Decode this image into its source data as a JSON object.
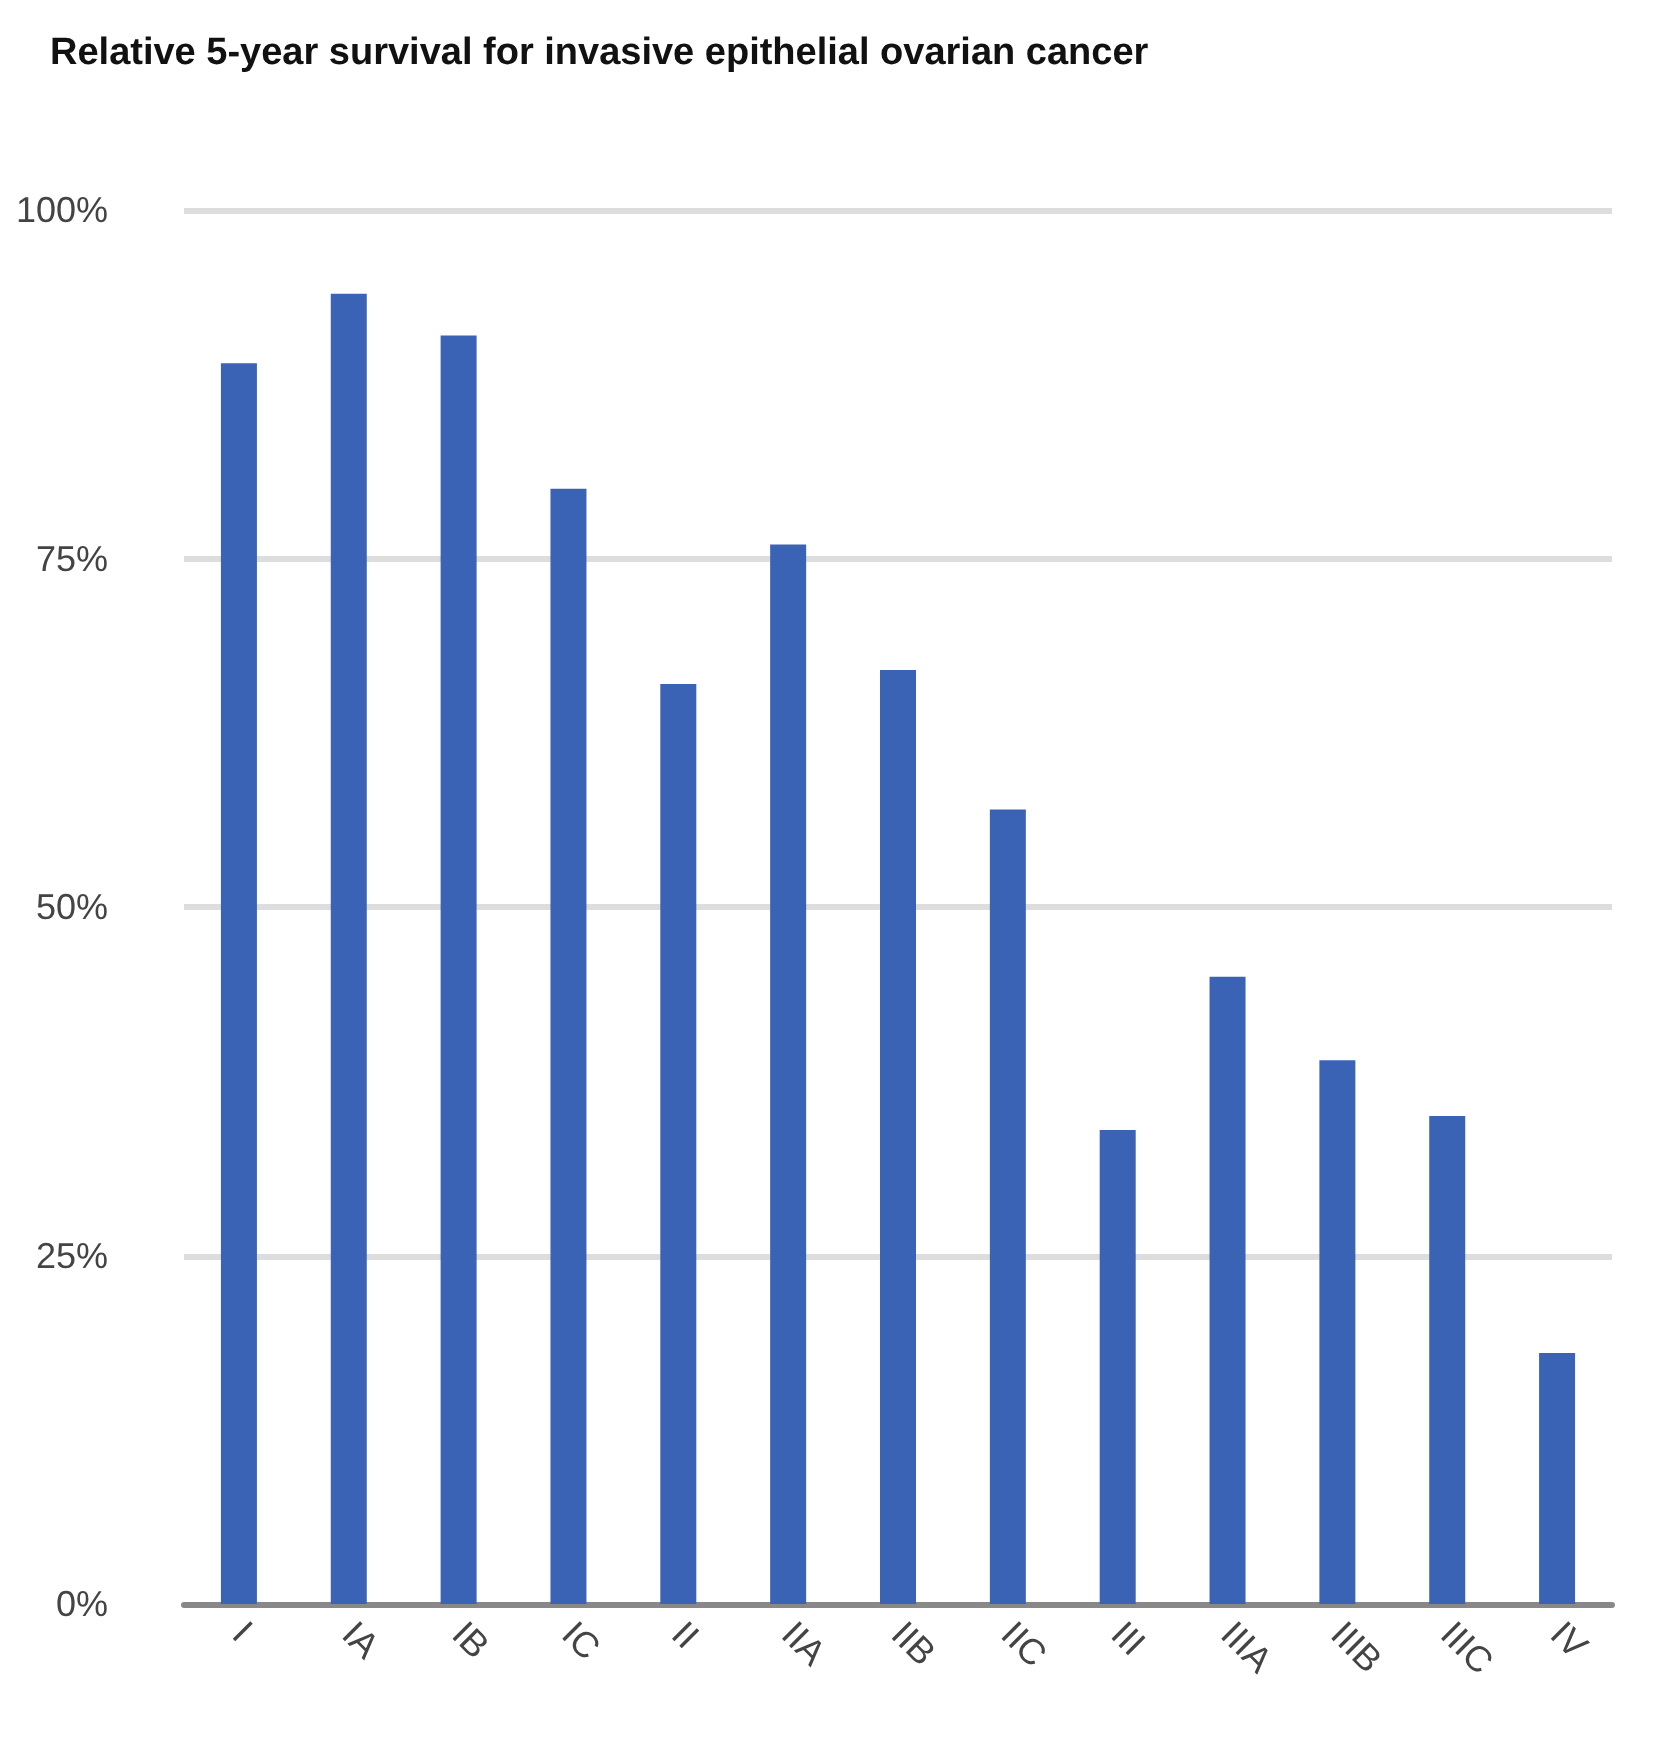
{
  "chart_data": {
    "type": "bar",
    "title": "Relative 5-year survival for invasive epithelial ovarian cancer",
    "categories": [
      "I",
      "IA",
      "IB",
      "IC",
      "II",
      "IIA",
      "IIB",
      "IIC",
      "III",
      "IIIA",
      "IIIB",
      "IIIC",
      "IV"
    ],
    "values": [
      89,
      94,
      91,
      80,
      66,
      76,
      67,
      57,
      34,
      45,
      39,
      35,
      18
    ],
    "color": "#3b63b5",
    "ylim": [
      0,
      100
    ],
    "yticks": [
      {
        "value": 0,
        "label": "0%"
      },
      {
        "value": 25,
        "label": "25%"
      },
      {
        "value": 50,
        "label": "50%"
      },
      {
        "value": 75,
        "label": "75%"
      },
      {
        "value": 100,
        "label": "100%"
      }
    ],
    "grid": "y"
  }
}
